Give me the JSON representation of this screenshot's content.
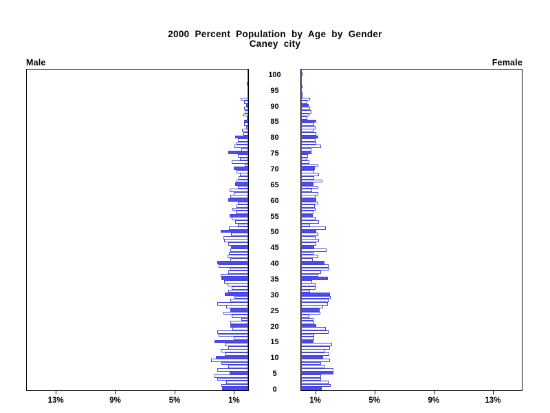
{
  "title": "2000 Percent Population by Age by Gender",
  "subtitle": "Caney city",
  "panels": {
    "left_label": "Male",
    "right_label": "Female"
  },
  "age_axis": {
    "tick_labels": [
      "0",
      "5",
      "10",
      "15",
      "20",
      "25",
      "30",
      "35",
      "40",
      "45",
      "50",
      "55",
      "60",
      "65",
      "70",
      "75",
      "80",
      "85",
      "90",
      "95",
      "100"
    ]
  },
  "percent_axis": {
    "male_tick_labels": [
      "1%",
      "5%",
      "9%",
      "13%"
    ],
    "female_tick_labels": [
      "1%",
      "5%",
      "9%",
      "13%"
    ],
    "tick_percents": [
      1,
      5,
      9,
      13
    ],
    "max_percent": 15
  },
  "colors": {
    "bar_fill_blue": "#4d4df0",
    "bar_outline_blue": "#4444e0",
    "axis_black": "#000000",
    "background": "#ffffff",
    "text": "#000000"
  },
  "chart_data": {
    "type": "bar",
    "variant": "population_pyramid",
    "title": "2000 Percent Population by Age by Gender",
    "subtitle": "Caney city",
    "orientation": "horizontal",
    "age_min": 0,
    "age_max": 100,
    "age_step": 1,
    "age_tick_step": 5,
    "solid_bar_every_years": 5,
    "xlim_percent": [
      0,
      15
    ],
    "x_ticks_percent": [
      1,
      5,
      9,
      13
    ],
    "grid": false,
    "series": [
      {
        "name": "Male",
        "side": "left",
        "values_percent_by_age": [
          1.75,
          1.8,
          1.5,
          2.1,
          2.3,
          1.25,
          2.1,
          1.35,
          1.8,
          2.5,
          2.2,
          1.6,
          1.85,
          1.35,
          1.6,
          2.3,
          1.0,
          2.0,
          2.1,
          1.05,
          1.2,
          1.2,
          0.45,
          1.1,
          1.7,
          1.2,
          1.5,
          2.1,
          1.2,
          0.95,
          1.6,
          1.35,
          1.1,
          1.4,
          1.65,
          1.8,
          1.85,
          1.35,
          1.25,
          2.0,
          2.1,
          1.2,
          1.4,
          1.3,
          1.2,
          1.15,
          1.35,
          1.65,
          1.7,
          1.15,
          1.85,
          1.3,
          0.7,
          0.9,
          1.1,
          1.25,
          0.85,
          1.05,
          0.8,
          0.7,
          1.35,
          1.2,
          1.0,
          1.25,
          0.7,
          0.9,
          0.8,
          0.65,
          0.55,
          0.8,
          1.0,
          0.25,
          1.1,
          0.55,
          0.7,
          1.35,
          0.45,
          0.95,
          0.8,
          0.7,
          0.9,
          0.35,
          0.4,
          0.15,
          0.3,
          0.3,
          0.1,
          0.35,
          0.25,
          0.3,
          0.15,
          0.3,
          0.5,
          0,
          0,
          0,
          0,
          0.1,
          0,
          0,
          0
        ]
      },
      {
        "name": "Female",
        "side": "right",
        "values_percent_by_age": [
          1.4,
          2.0,
          1.85,
          1.35,
          1.35,
          2.2,
          2.2,
          1.6,
          1.35,
          1.95,
          1.5,
          1.9,
          1.6,
          1.95,
          2.1,
          0.85,
          0.9,
          0.9,
          1.85,
          1.7,
          1.05,
          0.9,
          0.85,
          0.55,
          1.3,
          1.25,
          1.5,
          1.8,
          1.85,
          2.0,
          1.95,
          0.6,
          1.0,
          1.0,
          0.75,
          1.8,
          1.15,
          1.35,
          1.9,
          1.85,
          1.6,
          0.8,
          1.15,
          0.85,
          1.75,
          0.9,
          1.05,
          1.2,
          1.0,
          1.15,
          1.05,
          1.7,
          0.6,
          1.2,
          1.0,
          0.8,
          0.85,
          1.0,
          0.95,
          1.15,
          1.05,
          1.0,
          1.15,
          0.75,
          1.15,
          0.85,
          1.45,
          0.9,
          1.2,
          0.9,
          0.95,
          1.15,
          0.55,
          0.4,
          0.45,
          0.7,
          0.7,
          1.35,
          1.05,
          1.0,
          1.15,
          1.05,
          0.85,
          1.0,
          0.9,
          1.05,
          0.4,
          0.55,
          0.7,
          0.6,
          0.5,
          0.4,
          0.6,
          0.05,
          0.05,
          0,
          0.05,
          0,
          0,
          0,
          0.1
        ]
      }
    ]
  }
}
